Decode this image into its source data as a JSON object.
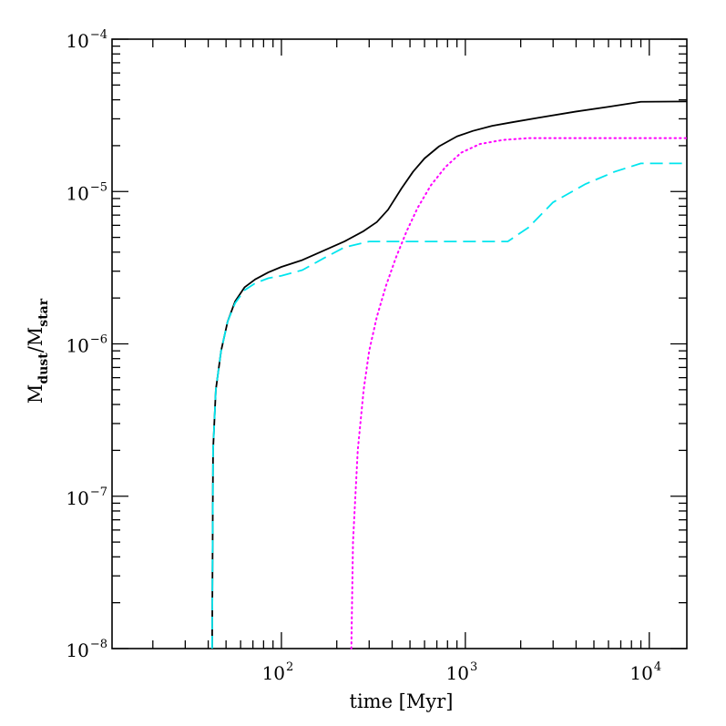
{
  "chart_data": {
    "type": "line",
    "x_scale": "log",
    "y_scale": "log",
    "xlim": [
      12,
      16000
    ],
    "ylim": [
      1e-08,
      0.0001
    ],
    "xlabel": "time [Myr]",
    "ylabel": {
      "base": "M",
      "num_sub": "dust",
      "den_sub": "star"
    },
    "x_ticks": [
      {
        "value": 100,
        "base": "10",
        "exp": "2"
      },
      {
        "value": 1000,
        "base": "10",
        "exp": "3"
      },
      {
        "value": 10000,
        "base": "10",
        "exp": "4"
      }
    ],
    "y_ticks": [
      {
        "value": 1e-08,
        "base": "10",
        "exp": "−8"
      },
      {
        "value": 1e-07,
        "base": "10",
        "exp": "−7"
      },
      {
        "value": 1e-06,
        "base": "10",
        "exp": "−6"
      },
      {
        "value": 1e-05,
        "base": "10",
        "exp": "−5"
      },
      {
        "value": 0.0001,
        "base": "10",
        "exp": "−4"
      }
    ],
    "grid": false,
    "series": [
      {
        "style": "solid",
        "color": "#000000",
        "points": [
          [
            42,
            1e-08
          ],
          [
            42.5,
            2e-07
          ],
          [
            44,
            5e-07
          ],
          [
            47,
            9e-07
          ],
          [
            51,
            1.4e-06
          ],
          [
            56,
            1.9e-06
          ],
          [
            63,
            2.35e-06
          ],
          [
            72,
            2.65e-06
          ],
          [
            85,
            2.95e-06
          ],
          [
            100,
            3.2e-06
          ],
          [
            130,
            3.55e-06
          ],
          [
            170,
            4.1e-06
          ],
          [
            220,
            4.7e-06
          ],
          [
            280,
            5.5e-06
          ],
          [
            330,
            6.3e-06
          ],
          [
            380,
            7.6e-06
          ],
          [
            450,
            1.05e-05
          ],
          [
            520,
            1.35e-05
          ],
          [
            600,
            1.65e-05
          ],
          [
            720,
            1.98e-05
          ],
          [
            900,
            2.3e-05
          ],
          [
            1100,
            2.5e-05
          ],
          [
            1400,
            2.7e-05
          ],
          [
            1800,
            2.85e-05
          ],
          [
            2500,
            3.05e-05
          ],
          [
            4000,
            3.35e-05
          ],
          [
            6000,
            3.6e-05
          ],
          [
            9000,
            3.88e-05
          ],
          [
            16000,
            3.9e-05
          ]
        ]
      },
      {
        "style": "dotted",
        "color": "#ff00ff",
        "points": [
          [
            240,
            1e-08
          ],
          [
            245,
            5e-08
          ],
          [
            260,
            2e-07
          ],
          [
            280,
            5e-07
          ],
          [
            300,
            9e-07
          ],
          [
            330,
            1.5e-06
          ],
          [
            370,
            2.4e-06
          ],
          [
            420,
            3.7e-06
          ],
          [
            480,
            5.5e-06
          ],
          [
            550,
            7.8e-06
          ],
          [
            650,
            1.1e-05
          ],
          [
            780,
            1.45e-05
          ],
          [
            950,
            1.8e-05
          ],
          [
            1200,
            2.05e-05
          ],
          [
            1600,
            2.18e-05
          ],
          [
            2200,
            2.24e-05
          ],
          [
            16000,
            2.24e-05
          ]
        ]
      },
      {
        "style": "dashed",
        "color": "#00e5ee",
        "points": [
          [
            42,
            1e-08
          ],
          [
            42.5,
            2e-07
          ],
          [
            44,
            5e-07
          ],
          [
            47,
            9e-07
          ],
          [
            51,
            1.4e-06
          ],
          [
            56,
            1.85e-06
          ],
          [
            63,
            2.25e-06
          ],
          [
            72,
            2.5e-06
          ],
          [
            85,
            2.7e-06
          ],
          [
            100,
            2.8e-06
          ],
          [
            130,
            3.05e-06
          ],
          [
            170,
            3.65e-06
          ],
          [
            220,
            4.3e-06
          ],
          [
            300,
            4.7e-06
          ],
          [
            500,
            4.7e-06
          ],
          [
            1000,
            4.7e-06
          ],
          [
            1700,
            4.7e-06
          ],
          [
            2200,
            5.8e-06
          ],
          [
            3000,
            8.5e-06
          ],
          [
            4500,
            1.12e-05
          ],
          [
            6500,
            1.35e-05
          ],
          [
            9000,
            1.53e-05
          ],
          [
            16000,
            1.53e-05
          ]
        ]
      }
    ]
  }
}
